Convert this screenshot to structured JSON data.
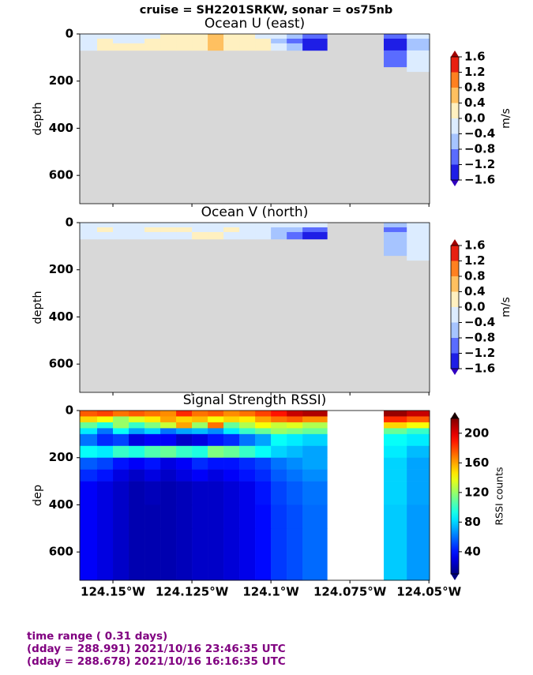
{
  "title": "cruise = SH2201SRKW,  sonar = os75nb",
  "chart_data": [
    {
      "type": "contourf",
      "title": "Ocean U (east)",
      "ylabel": "depth",
      "ylim": [
        720,
        0
      ],
      "yticks": [
        0,
        200,
        400,
        600
      ],
      "xlim": [
        -124.1605,
        -124.0498
      ],
      "sharex": true,
      "x_edges": [
        -124.1605,
        -124.155,
        -124.15,
        -124.145,
        -124.14,
        -124.135,
        -124.13,
        -124.125,
        -124.12,
        -124.115,
        -124.11,
        -124.105,
        -124.1,
        -124.095,
        -124.09,
        -124.0822,
        -124.0643,
        -124.057,
        -124.0498
      ],
      "depth_edges": [
        0,
        20,
        40,
        70,
        140,
        160,
        720
      ],
      "values": [
        [
          -0.2,
          -0.2,
          -0.2,
          -0.2,
          -0.2,
          0.2,
          0.2,
          0.2,
          0.6,
          0.2,
          0.2,
          -0.2,
          -0.2,
          -0.6,
          -1.0,
          null,
          -1.0,
          -0.2
        ],
        [
          -0.2,
          0.2,
          -0.2,
          -0.2,
          0.2,
          0.2,
          0.2,
          0.2,
          0.6,
          0.2,
          0.2,
          0.2,
          -0.6,
          -1.0,
          -1.4,
          null,
          -1.4,
          -0.6
        ],
        [
          -0.2,
          0.2,
          0.2,
          0.2,
          0.2,
          0.2,
          0.2,
          0.2,
          0.6,
          0.2,
          0.2,
          0.2,
          -0.2,
          -0.6,
          -1.4,
          null,
          -1.4,
          -0.6
        ],
        [
          null,
          null,
          null,
          null,
          null,
          null,
          null,
          null,
          null,
          null,
          null,
          null,
          null,
          null,
          null,
          null,
          -1.0,
          -0.2
        ],
        [
          null,
          null,
          null,
          null,
          null,
          null,
          null,
          null,
          null,
          null,
          null,
          null,
          null,
          null,
          null,
          null,
          null,
          -0.2
        ],
        [
          null,
          null,
          null,
          null,
          null,
          null,
          null,
          null,
          null,
          null,
          null,
          null,
          null,
          null,
          null,
          null,
          null,
          null
        ]
      ],
      "levels": [
        -1.6,
        -1.2,
        -0.8,
        -0.4,
        0,
        0.4,
        0.8,
        1.2,
        1.6
      ],
      "level_colors": [
        "#1e1ee6",
        "#5a6cff",
        "#a6c4ff",
        "#dcecff",
        "#fff0c0",
        "#ffc060",
        "#ff8020",
        "#e82010"
      ],
      "under_color": "#3000c0",
      "over_color": "#a00000",
      "mask_color": "#d8d8d8",
      "colorbar_label": "m/s",
      "colorbar_ticks": [
        1.6,
        1.2,
        0.8,
        0.4,
        {
          "value": 0,
          "label": "0.0"
        },
        {
          "value": -0.4,
          "label": "−0.4"
        },
        {
          "value": -0.8,
          "label": "−0.8"
        },
        {
          "value": -1.2,
          "label": "−1.2"
        },
        {
          "value": -1.6,
          "label": "−1.6"
        }
      ]
    },
    {
      "type": "contourf",
      "title": "Ocean V (north)",
      "ylabel": "depth",
      "ylim": [
        720,
        0
      ],
      "yticks": [
        0,
        200,
        400,
        600
      ],
      "xlim": [
        -124.1605,
        -124.0498
      ],
      "sharex": true,
      "x_edges": [
        -124.1605,
        -124.155,
        -124.15,
        -124.145,
        -124.14,
        -124.135,
        -124.13,
        -124.125,
        -124.12,
        -124.115,
        -124.11,
        -124.105,
        -124.1,
        -124.095,
        -124.09,
        -124.0822,
        -124.0643,
        -124.057,
        -124.0498
      ],
      "depth_edges": [
        0,
        20,
        40,
        70,
        140,
        160,
        720
      ],
      "values": [
        [
          -0.2,
          -0.2,
          -0.2,
          -0.2,
          -0.2,
          -0.2,
          -0.2,
          -0.2,
          -0.2,
          -0.2,
          -0.2,
          -0.2,
          -0.2,
          -0.2,
          -0.2,
          null,
          -0.6,
          -0.2
        ],
        [
          -0.2,
          0.2,
          -0.2,
          -0.2,
          0.2,
          0.2,
          0.2,
          -0.2,
          -0.2,
          0.2,
          -0.2,
          -0.2,
          -0.6,
          -0.6,
          -1.0,
          null,
          -1.0,
          -0.2
        ],
        [
          -0.2,
          -0.2,
          -0.2,
          -0.2,
          -0.2,
          -0.2,
          -0.2,
          0.2,
          0.2,
          -0.2,
          -0.2,
          -0.2,
          -0.6,
          -1.0,
          -1.4,
          null,
          -0.6,
          -0.2
        ],
        [
          null,
          null,
          null,
          null,
          null,
          null,
          null,
          null,
          null,
          null,
          null,
          null,
          null,
          null,
          null,
          null,
          -0.6,
          -0.2
        ],
        [
          null,
          null,
          null,
          null,
          null,
          null,
          null,
          null,
          null,
          null,
          null,
          null,
          null,
          null,
          null,
          null,
          null,
          -0.2
        ],
        [
          null,
          null,
          null,
          null,
          null,
          null,
          null,
          null,
          null,
          null,
          null,
          null,
          null,
          null,
          null,
          null,
          null,
          null
        ]
      ],
      "levels": [
        -1.6,
        -1.2,
        -0.8,
        -0.4,
        0,
        0.4,
        0.8,
        1.2,
        1.6
      ],
      "level_colors": [
        "#1e1ee6",
        "#5a6cff",
        "#a6c4ff",
        "#dcecff",
        "#fff0c0",
        "#ffc060",
        "#ff8020",
        "#e82010"
      ],
      "under_color": "#3000c0",
      "over_color": "#a00000",
      "mask_color": "#d8d8d8",
      "colorbar_label": "m/s",
      "colorbar_ticks": [
        1.6,
        1.2,
        0.8,
        0.4,
        {
          "value": 0,
          "label": "0.0"
        },
        {
          "value": -0.4,
          "label": "−0.4"
        },
        {
          "value": -0.8,
          "label": "−0.8"
        },
        {
          "value": -1.2,
          "label": "−1.2"
        },
        {
          "value": -1.6,
          "label": "−1.6"
        }
      ]
    },
    {
      "type": "pcolormesh",
      "title": "Signal Strength RSSI)",
      "ylabel": "dep",
      "ylim": [
        720,
        0
      ],
      "yticks": [
        0,
        200,
        400,
        600
      ],
      "xlim": [
        -124.1605,
        -124.0498
      ],
      "xticks": [
        {
          "value": -124.15,
          "label": "124.15°W"
        },
        {
          "value": -124.125,
          "label": "124.125°W"
        },
        {
          "value": -124.1,
          "label": "124.1°W"
        },
        {
          "value": -124.075,
          "label": "124.075°W"
        },
        {
          "value": -124.05,
          "label": "124.05°W"
        }
      ],
      "x_edges": [
        -124.1605,
        -124.155,
        -124.15,
        -124.145,
        -124.14,
        -124.135,
        -124.13,
        -124.125,
        -124.12,
        -124.115,
        -124.11,
        -124.105,
        -124.1,
        -124.095,
        -124.09,
        -124.0822,
        -124.0643,
        -124.057,
        -124.0498
      ],
      "depth_edges": [
        0,
        25,
        50,
        75,
        100,
        150,
        200,
        250,
        300,
        400,
        500,
        720
      ],
      "values": [
        [
          175,
          180,
          170,
          175,
          170,
          165,
          185,
          170,
          175,
          165,
          170,
          180,
          190,
          205,
          210,
          null,
          215,
          205
        ],
        [
          150,
          140,
          120,
          135,
          145,
          160,
          150,
          155,
          140,
          150,
          145,
          160,
          170,
          175,
          165,
          null,
          185,
          175
        ],
        [
          110,
          95,
          120,
          100,
          115,
          130,
          160,
          120,
          170,
          110,
          125,
          140,
          130,
          135,
          125,
          null,
          150,
          140
        ],
        [
          85,
          60,
          90,
          70,
          80,
          60,
          70,
          75,
          65,
          85,
          100,
          110,
          120,
          115,
          110,
          null,
          110,
          100
        ],
        [
          60,
          45,
          50,
          30,
          35,
          35,
          25,
          30,
          40,
          45,
          60,
          70,
          90,
          85,
          80,
          null,
          90,
          85
        ],
        [
          90,
          85,
          100,
          95,
          105,
          110,
          100,
          95,
          115,
          110,
          100,
          90,
          80,
          75,
          70,
          null,
          85,
          75
        ],
        [
          55,
          50,
          40,
          35,
          40,
          30,
          35,
          45,
          40,
          40,
          45,
          50,
          60,
          65,
          70,
          null,
          80,
          70
        ],
        [
          45,
          40,
          30,
          25,
          30,
          25,
          30,
          35,
          30,
          35,
          40,
          45,
          55,
          60,
          65,
          null,
          80,
          70
        ],
        [
          35,
          30,
          25,
          20,
          22,
          20,
          22,
          25,
          25,
          28,
          32,
          40,
          50,
          55,
          60,
          null,
          80,
          70
        ],
        [
          35,
          30,
          25,
          20,
          20,
          20,
          22,
          25,
          25,
          28,
          32,
          38,
          48,
          52,
          58,
          null,
          78,
          68
        ],
        [
          35,
          30,
          25,
          20,
          20,
          20,
          22,
          25,
          25,
          28,
          32,
          38,
          48,
          52,
          58,
          null,
          78,
          68
        ]
      ],
      "colormap": "jet",
      "clim": [
        10,
        220
      ],
      "colorbar_label": "RSSI counts",
      "colorbar_ticks": [
        40,
        80,
        120,
        160,
        200
      ]
    }
  ],
  "footer": [
    "time range ( 0.31 days)",
    "(dday = 288.991) 2021/10/16 23:46:35 UTC",
    "(dday = 288.678) 2021/10/16 16:16:35 UTC"
  ]
}
